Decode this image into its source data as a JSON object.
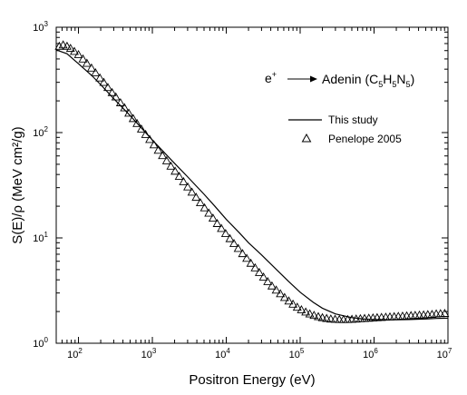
{
  "chart_data": {
    "type": "line",
    "title": "",
    "xlabel": "Positron Energy (eV)",
    "ylabel": "S(E)/ρ (MeV cm²/g)",
    "xscale": "log",
    "yscale": "log",
    "xlim": [
      50,
      10000000
    ],
    "ylim": [
      1,
      1000
    ],
    "x_ticks": [
      {
        "base": "10",
        "exp": "2"
      },
      {
        "base": "10",
        "exp": "3"
      },
      {
        "base": "10",
        "exp": "4"
      },
      {
        "base": "10",
        "exp": "5"
      },
      {
        "base": "10",
        "exp": "6"
      },
      {
        "base": "10",
        "exp": "7"
      }
    ],
    "y_ticks": [
      {
        "base": "10",
        "exp": "0"
      },
      {
        "base": "10",
        "exp": "1"
      },
      {
        "base": "10",
        "exp": "2"
      },
      {
        "base": "10",
        "exp": "3"
      }
    ],
    "annotation": {
      "particle": "e",
      "charge": "+",
      "target": "Adenin (C",
      "sub1": "5",
      "mid1": "H",
      "sub2": "5",
      "mid2": "N",
      "sub3": "5",
      "close": ")"
    },
    "legend_position": "top-right",
    "series": [
      {
        "name": "This study",
        "style": "line",
        "color": "#000000",
        "x": [
          50,
          70,
          100,
          150,
          200,
          300,
          500,
          700,
          1000,
          1500,
          2000,
          3000,
          5000,
          7000,
          10000,
          15000,
          20000,
          30000,
          50000,
          70000,
          100000,
          150000,
          200000,
          300000,
          500000,
          700000,
          1000000,
          1500000,
          2000000,
          3000000,
          5000000,
          7000000,
          10000000
        ],
        "y": [
          610,
          560,
          450,
          350,
          285,
          210,
          145,
          112,
          85,
          63,
          51,
          38,
          26,
          20,
          15,
          11.2,
          9.0,
          6.9,
          4.85,
          3.85,
          3.05,
          2.45,
          2.15,
          1.9,
          1.75,
          1.7,
          1.68,
          1.67,
          1.67,
          1.68,
          1.7,
          1.72,
          1.73
        ]
      },
      {
        "name": "Penelope 2005",
        "style": "marker",
        "marker": "open-triangle",
        "color": "#000000",
        "x": [
          55,
          62,
          70,
          78,
          88,
          100,
          115,
          130,
          150,
          170,
          195,
          220,
          250,
          285,
          320,
          370,
          420,
          480,
          550,
          620,
          710,
          810,
          920,
          1050,
          1200,
          1370,
          1560,
          1780,
          2030,
          2310,
          2640,
          3010,
          3430,
          3910,
          4460,
          5080,
          5800,
          6610,
          7540,
          8600,
          9800,
          11200,
          12700,
          14500,
          16600,
          18900,
          21500,
          24600,
          28000,
          31900,
          36400,
          41500,
          47400,
          54000,
          61600,
          70200,
          80000,
          91300,
          104000,
          119000,
          135000,
          154000,
          176000,
          200000,
          228000,
          260000,
          297000,
          339000,
          386000,
          440000,
          502000,
          572000,
          653000,
          744000,
          849000,
          968000,
          1100000,
          1260000,
          1440000,
          1640000,
          1870000,
          2130000,
          2430000,
          2770000,
          3160000,
          3600000,
          4110000,
          4680000,
          5340000,
          6090000,
          6940000,
          7920000,
          9030000
        ],
        "y": [
          660,
          680,
          660,
          630,
          590,
          550,
          500,
          455,
          410,
          370,
          330,
          300,
          268,
          240,
          218,
          192,
          172,
          153,
          136,
          122,
          108,
          96,
          86,
          76.5,
          68,
          60.5,
          54,
          48,
          43,
          38.4,
          34.2,
          30.5,
          27.2,
          24.3,
          21.6,
          19.3,
          17.2,
          15.4,
          13.7,
          12.3,
          11.0,
          9.85,
          8.85,
          7.95,
          7.1,
          6.4,
          5.75,
          5.2,
          4.7,
          4.25,
          3.85,
          3.5,
          3.2,
          2.95,
          2.72,
          2.52,
          2.35,
          2.2,
          2.08,
          1.98,
          1.9,
          1.84,
          1.79,
          1.75,
          1.72,
          1.7,
          1.69,
          1.68,
          1.68,
          1.68,
          1.69,
          1.7,
          1.71,
          1.72,
          1.73,
          1.74,
          1.75,
          1.76,
          1.77,
          1.78,
          1.79,
          1.8,
          1.81,
          1.82,
          1.83,
          1.84,
          1.85,
          1.86,
          1.87,
          1.88,
          1.9,
          1.91,
          1.92
        ]
      }
    ]
  }
}
